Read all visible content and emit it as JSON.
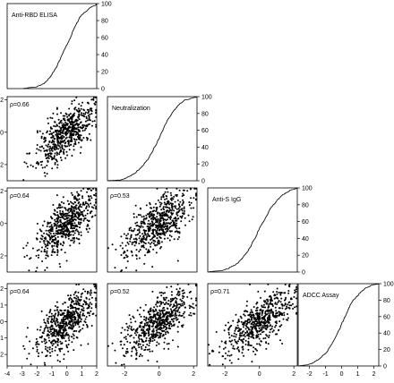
{
  "chart_data": {
    "type": "scatter",
    "title": "",
    "variables": [
      {
        "name": "Anti-RBD ELISA",
        "range": [
          -4,
          2
        ]
      },
      {
        "name": "Neutralization",
        "range": [
          -3,
          2.2
        ]
      },
      {
        "name": "Anti-S IgG",
        "range": [
          -3,
          2.2
        ]
      },
      {
        "name": "ADCC Assay",
        "range": [
          -2.7,
          2.3
        ]
      }
    ],
    "ecdf_ylim": [
      0,
      100
    ],
    "ecdf_ticks": [
      0,
      20,
      40,
      60,
      80,
      100
    ],
    "x_ticks": [
      [
        -4,
        -3,
        -2,
        -1,
        0,
        1,
        2
      ],
      [
        -2,
        0,
        2
      ],
      [
        -2,
        0,
        2
      ],
      [
        -2,
        -1,
        0,
        1,
        2
      ]
    ],
    "y_ticks": [
      [
        -4,
        -3,
        -2,
        -1,
        0,
        1,
        2
      ],
      [
        -2,
        0,
        2
      ],
      [
        -2,
        0,
        2
      ],
      [
        -2,
        -1,
        0,
        1,
        2
      ]
    ],
    "correlations": [
      {
        "row": 1,
        "col": 0,
        "label": "ρ=0.66",
        "rho": 0.66
      },
      {
        "row": 2,
        "col": 0,
        "label": "ρ=0.64",
        "rho": 0.64
      },
      {
        "row": 2,
        "col": 1,
        "label": "ρ=0.53",
        "rho": 0.53
      },
      {
        "row": 3,
        "col": 0,
        "label": "ρ=0.64",
        "rho": 0.64
      },
      {
        "row": 3,
        "col": 1,
        "label": "ρ=0.52",
        "rho": 0.52
      },
      {
        "row": 3,
        "col": 2,
        "label": "ρ=0.71",
        "rho": 0.71
      }
    ],
    "n_points": 600,
    "grid": false,
    "legend": "none"
  }
}
